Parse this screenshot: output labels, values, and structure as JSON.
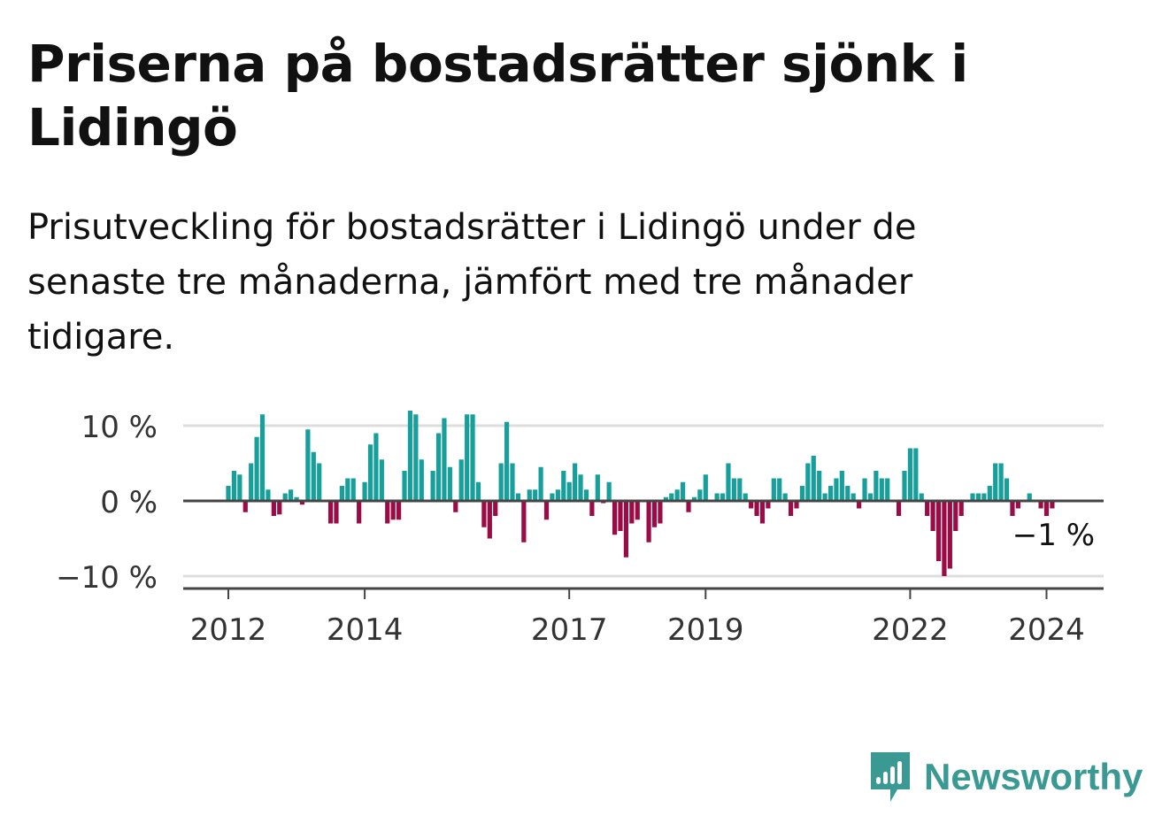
{
  "header": {
    "title": "Priserna på bostadsrätter sjönk i Lidingö",
    "subtitle": "Prisutveckling för bostadsrätter i Lidingö under de senaste tre månaderna, jämfört med tre månader tidigare."
  },
  "brand": {
    "name": "Newsworthy",
    "icon": "newsworthy-logo-icon",
    "color": "#3a9a93"
  },
  "colors": {
    "positive": "#17a09b",
    "negative": "#9b0b45",
    "grid": "#dddddd",
    "axis": "#444444"
  },
  "chart_data": {
    "type": "bar",
    "title": "Priserna på bostadsrätter sjönk i Lidingö",
    "xlabel": "",
    "ylabel": "",
    "ylim": [
      -12,
      13
    ],
    "grid": true,
    "y_ticks": [
      {
        "value": 10,
        "label": "10 %"
      },
      {
        "value": 0,
        "label": "0 %"
      },
      {
        "value": -10,
        "label": "−10 %"
      }
    ],
    "x_ticks": [
      {
        "index": 0,
        "label": "2012"
      },
      {
        "index": 24,
        "label": "2014"
      },
      {
        "index": 60,
        "label": "2017"
      },
      {
        "index": 84,
        "label": "2019"
      },
      {
        "index": 120,
        "label": "2022"
      },
      {
        "index": 144,
        "label": "2024"
      }
    ],
    "end_label": "−1 %",
    "values": [
      2.0,
      4.0,
      3.5,
      -1.5,
      5.0,
      8.5,
      11.5,
      1.5,
      -2.0,
      -1.8,
      1.0,
      1.5,
      0.5,
      -0.5,
      9.5,
      6.5,
      5.0,
      0.0,
      -3.0,
      -3.0,
      2.0,
      3.0,
      3.0,
      -3.0,
      2.5,
      7.5,
      9.0,
      5.5,
      -3.0,
      -2.5,
      -2.5,
      4.0,
      12.0,
      11.5,
      5.5,
      0.0,
      4.0,
      9.0,
      11.0,
      4.5,
      -1.5,
      5.5,
      11.5,
      11.5,
      2.5,
      -3.5,
      -5.0,
      -2.0,
      5.0,
      10.5,
      5.0,
      1.0,
      -5.5,
      1.5,
      1.5,
      4.5,
      -2.5,
      1.0,
      1.5,
      4.0,
      2.5,
      5.0,
      3.5,
      1.5,
      -2.0,
      3.5,
      -0.3,
      2.5,
      -4.5,
      -4.0,
      -7.5,
      -3.0,
      -2.5,
      0.0,
      -5.5,
      -3.5,
      -3.0,
      0.5,
      1.0,
      1.5,
      2.5,
      -1.5,
      0.5,
      1.5,
      3.5,
      0.0,
      1.0,
      1.0,
      5.0,
      3.0,
      3.0,
      1.0,
      -1.0,
      -2.0,
      -3.0,
      -1.0,
      3.0,
      3.0,
      1.0,
      -2.0,
      -1.0,
      2.0,
      5.0,
      6.0,
      4.0,
      1.0,
      2.0,
      3.0,
      4.0,
      2.0,
      1.0,
      -1.0,
      3.0,
      1.0,
      4.0,
      3.0,
      3.0,
      0.0,
      -2.0,
      4.0,
      7.0,
      7.0,
      1.0,
      -2.0,
      -4.0,
      -8.0,
      -10.0,
      -9.0,
      -4.0,
      -2.0,
      0.0,
      1.0,
      1.0,
      1.0,
      2.0,
      5.0,
      5.0,
      3.0,
      -2.0,
      -1.0,
      0.0,
      1.0,
      0.0,
      -1.0,
      -2.0,
      -1.0
    ]
  }
}
